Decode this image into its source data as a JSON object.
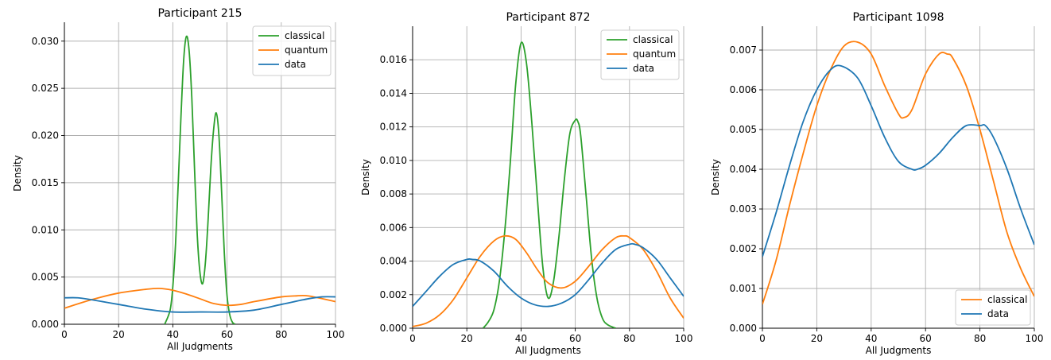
{
  "chart_data": [
    {
      "type": "line",
      "title": "Participant 215",
      "xlabel": "All Judgments",
      "ylabel": "Density",
      "xlim": [
        0,
        100
      ],
      "ylim": [
        0,
        0.032
      ],
      "xticks": [
        "0",
        "20",
        "40",
        "60",
        "80",
        "100"
      ],
      "yticks": [
        "0.000",
        "0.005",
        "0.010",
        "0.015",
        "0.020",
        "0.025",
        "0.030"
      ],
      "grid": true,
      "legend_position": "top-right",
      "series": [
        {
          "name": "classical",
          "color": "#2ca02c",
          "x": [
            37,
            39,
            40,
            41,
            42,
            43,
            44,
            45,
            46,
            47,
            48,
            49,
            50,
            51,
            52,
            53,
            54,
            55,
            56,
            57,
            58,
            59,
            60,
            61,
            62,
            63
          ],
          "y": [
            0.0,
            0.0015,
            0.004,
            0.0085,
            0.015,
            0.022,
            0.028,
            0.0305,
            0.029,
            0.024,
            0.0165,
            0.0095,
            0.0055,
            0.0043,
            0.0065,
            0.011,
            0.0165,
            0.0205,
            0.0224,
            0.02,
            0.014,
            0.0075,
            0.003,
            0.001,
            0.0002,
            0.0
          ]
        },
        {
          "name": "quantum",
          "color": "#ff7f0e",
          "x": [
            0,
            10,
            20,
            30,
            35,
            40,
            45,
            50,
            55,
            60,
            65,
            70,
            80,
            85,
            90,
            100
          ],
          "y": [
            0.0017,
            0.0026,
            0.0033,
            0.0037,
            0.0038,
            0.0036,
            0.0032,
            0.0027,
            0.0022,
            0.002,
            0.0021,
            0.0024,
            0.0029,
            0.003,
            0.003,
            0.0024
          ]
        },
        {
          "name": "data",
          "color": "#1f77b4",
          "x": [
            0,
            5,
            10,
            20,
            30,
            40,
            50,
            60,
            70,
            80,
            90,
            95,
            100
          ],
          "y": [
            0.0028,
            0.0028,
            0.0026,
            0.0021,
            0.0016,
            0.0013,
            0.0013,
            0.0013,
            0.0015,
            0.0021,
            0.0027,
            0.0029,
            0.0029
          ]
        }
      ]
    },
    {
      "type": "line",
      "title": "Participant 872",
      "xlabel": "All Judgments",
      "ylabel": "Density",
      "xlim": [
        0,
        100
      ],
      "ylim": [
        0,
        0.018
      ],
      "xticks": [
        "0",
        "20",
        "40",
        "60",
        "80",
        "100"
      ],
      "yticks": [
        "0.000",
        "0.002",
        "0.004",
        "0.006",
        "0.008",
        "0.010",
        "0.012",
        "0.014",
        "0.016"
      ],
      "grid": true,
      "legend_position": "top-right",
      "series": [
        {
          "name": "classical",
          "color": "#2ca02c",
          "x": [
            26,
            28,
            30,
            32,
            34,
            36,
            38,
            40,
            42,
            44,
            46,
            48,
            50,
            52,
            54,
            56,
            58,
            60,
            61,
            62,
            64,
            66,
            68,
            70,
            72,
            75
          ],
          "y": [
            0.0,
            0.0004,
            0.0011,
            0.0028,
            0.0058,
            0.0098,
            0.0145,
            0.017,
            0.0158,
            0.0122,
            0.0078,
            0.0037,
            0.0018,
            0.0028,
            0.0055,
            0.0089,
            0.0116,
            0.0124,
            0.0123,
            0.0115,
            0.0079,
            0.0042,
            0.0018,
            0.0006,
            0.0002,
            0.0
          ]
        },
        {
          "name": "quantum",
          "color": "#ff7f0e",
          "x": [
            0,
            5,
            10,
            15,
            20,
            25,
            30,
            34,
            38,
            42,
            46,
            50,
            55,
            60,
            65,
            70,
            75,
            78,
            80,
            85,
            90,
            95,
            100
          ],
          "y": [
            0.0001,
            0.0003,
            0.0008,
            0.0017,
            0.003,
            0.0043,
            0.0052,
            0.0055,
            0.0053,
            0.0045,
            0.0035,
            0.0027,
            0.0024,
            0.0028,
            0.0037,
            0.0047,
            0.0054,
            0.0055,
            0.0054,
            0.0047,
            0.0034,
            0.0018,
            0.0006
          ]
        },
        {
          "name": "data",
          "color": "#1f77b4",
          "x": [
            0,
            5,
            10,
            15,
            20,
            22,
            25,
            30,
            35,
            40,
            45,
            50,
            55,
            60,
            65,
            70,
            75,
            80,
            82,
            85,
            90,
            95,
            100
          ],
          "y": [
            0.0013,
            0.0022,
            0.0031,
            0.0038,
            0.0041,
            0.0041,
            0.004,
            0.0034,
            0.0025,
            0.0018,
            0.0014,
            0.0013,
            0.0015,
            0.002,
            0.0029,
            0.0039,
            0.0047,
            0.005,
            0.005,
            0.0048,
            0.0041,
            0.003,
            0.0019
          ]
        }
      ]
    },
    {
      "type": "line",
      "title": "Participant 1098",
      "xlabel": "All Judgments",
      "ylabel": "Density",
      "xlim": [
        0,
        100
      ],
      "ylim": [
        0,
        0.0076
      ],
      "xticks": [
        "0",
        "20",
        "40",
        "60",
        "80",
        "100"
      ],
      "yticks": [
        "0.000",
        "0.001",
        "0.002",
        "0.003",
        "0.004",
        "0.005",
        "0.006",
        "0.007"
      ],
      "grid": true,
      "legend_position": "bottom-right",
      "series": [
        {
          "name": "classical",
          "color": "#ff7f0e",
          "x": [
            0,
            5,
            10,
            15,
            20,
            25,
            30,
            35,
            40,
            45,
            50,
            52,
            55,
            60,
            65,
            68,
            70,
            75,
            80,
            85,
            90,
            95,
            100
          ],
          "y": [
            0.0006,
            0.0017,
            0.0031,
            0.0044,
            0.0056,
            0.0065,
            0.0071,
            0.0072,
            0.0069,
            0.0061,
            0.0054,
            0.0053,
            0.0055,
            0.0064,
            0.0069,
            0.0069,
            0.0068,
            0.0061,
            0.005,
            0.0037,
            0.0024,
            0.0015,
            0.0008
          ]
        },
        {
          "name": "data",
          "color": "#1f77b4",
          "x": [
            0,
            5,
            10,
            15,
            20,
            25,
            29,
            35,
            40,
            45,
            50,
            55,
            57,
            60,
            65,
            70,
            75,
            80,
            82,
            85,
            90,
            95,
            100
          ],
          "y": [
            0.0018,
            0.0029,
            0.0041,
            0.0052,
            0.006,
            0.0065,
            0.0066,
            0.0063,
            0.0056,
            0.0048,
            0.0042,
            0.004,
            0.004,
            0.0041,
            0.0044,
            0.0048,
            0.0051,
            0.0051,
            0.0051,
            0.0048,
            0.004,
            0.003,
            0.0021
          ]
        }
      ]
    }
  ]
}
